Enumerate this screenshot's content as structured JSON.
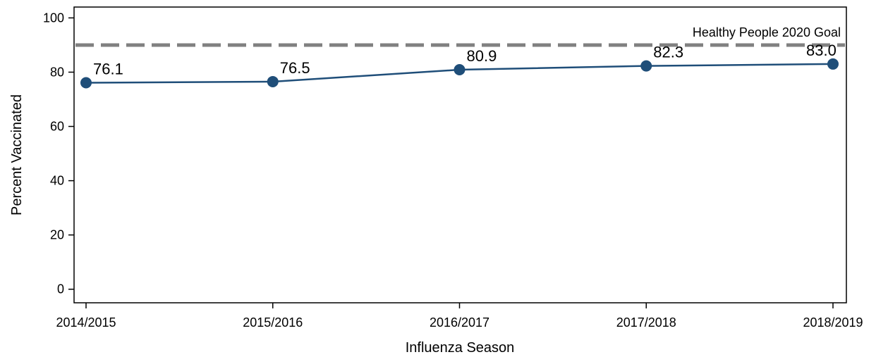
{
  "chart_data": {
    "type": "line",
    "title": "",
    "xlabel": "Influenza Season",
    "ylabel": "Percent Vaccinated",
    "categories": [
      "2014/2015",
      "2015/2016",
      "2016/2017",
      "2017/2018",
      "2018/2019"
    ],
    "series": [
      {
        "values": [
          76.1,
          76.5,
          80.9,
          82.3,
          83.0
        ],
        "value_labels": [
          "76.1",
          "76.5",
          "80.9",
          "82.3",
          "83.0"
        ],
        "color": "#1f4e79"
      }
    ],
    "yticks": [
      0,
      20,
      40,
      60,
      80,
      100
    ],
    "ylim": [
      -5,
      104
    ],
    "reference_line": {
      "value": 90,
      "label": "Healthy People 2020 Goal",
      "color": "#808080",
      "style": "dashed"
    },
    "grid": false,
    "legend": "none"
  }
}
